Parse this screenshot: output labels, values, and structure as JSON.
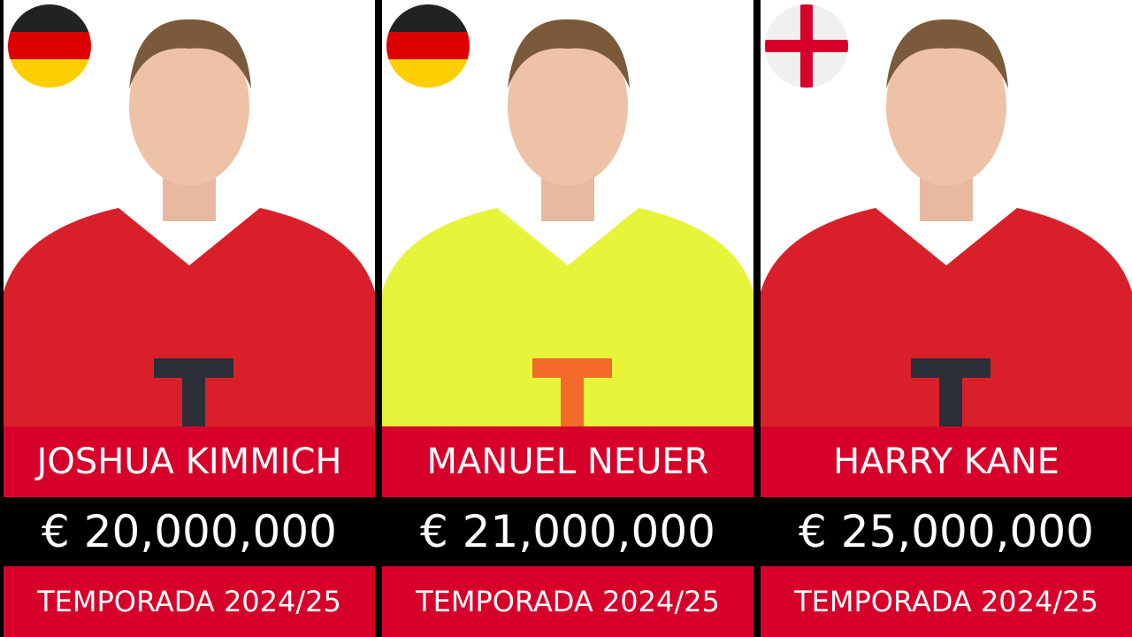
{
  "accent_red": "#d6002a",
  "players": [
    {
      "name": "JOSHUA KIMMICH",
      "value": "€ 20,000,000",
      "season": "TEMPORADA 2024/25",
      "flag": "germany",
      "kit_color": "#d9202a",
      "kit_logo": "#2b2f3a"
    },
    {
      "name": "MANUEL NEUER",
      "value": "€ 21,000,000",
      "season": "TEMPORADA 2024/25",
      "flag": "germany",
      "kit_color": "#e6f43a",
      "kit_logo": "#f36a2a"
    },
    {
      "name": "HARRY KANE",
      "value": "€ 25,000,000",
      "season": "TEMPORADA 2024/25",
      "flag": "england",
      "kit_color": "#d9202a",
      "kit_logo": "#2b2f3a"
    }
  ]
}
